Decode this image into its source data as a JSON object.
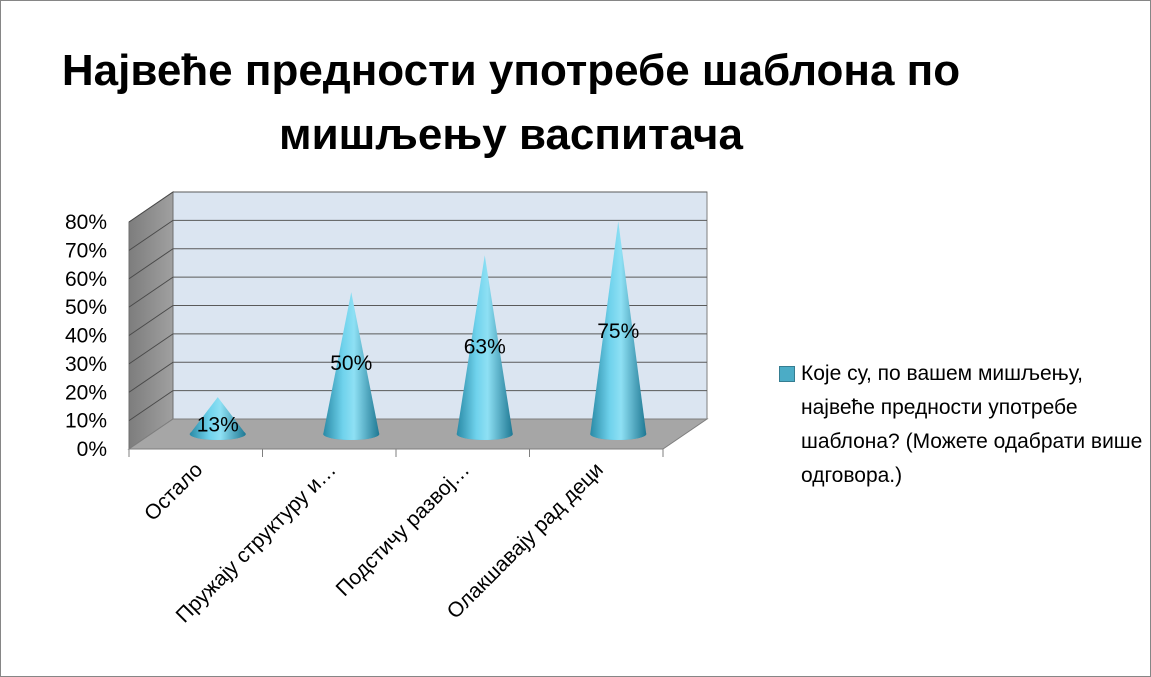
{
  "chart_data": {
    "type": "bar",
    "title": "Највеће предности употребе шаблона по мишљењу васпитача",
    "categories": [
      "Остало",
      "Пружају структуру и…",
      "Подстичу развој…",
      "Олакшавају рад деци"
    ],
    "series": [
      {
        "name": "Које су, по вашем мишљењу, највеће предности употребе шаблона? (Можете одабрати више одговора.)",
        "values": [
          0.13,
          0.5,
          0.63,
          0.75
        ],
        "data_labels": [
          "13%",
          "50%",
          "63%",
          "75%"
        ],
        "color": "#4bacc6"
      }
    ],
    "ylim": [
      0,
      0.8
    ],
    "yticks": [
      "0%",
      "10%",
      "20%",
      "30%",
      "40%",
      "50%",
      "60%",
      "70%",
      "80%"
    ],
    "legend_position": "right",
    "grid": true,
    "style": "3d-cone"
  }
}
